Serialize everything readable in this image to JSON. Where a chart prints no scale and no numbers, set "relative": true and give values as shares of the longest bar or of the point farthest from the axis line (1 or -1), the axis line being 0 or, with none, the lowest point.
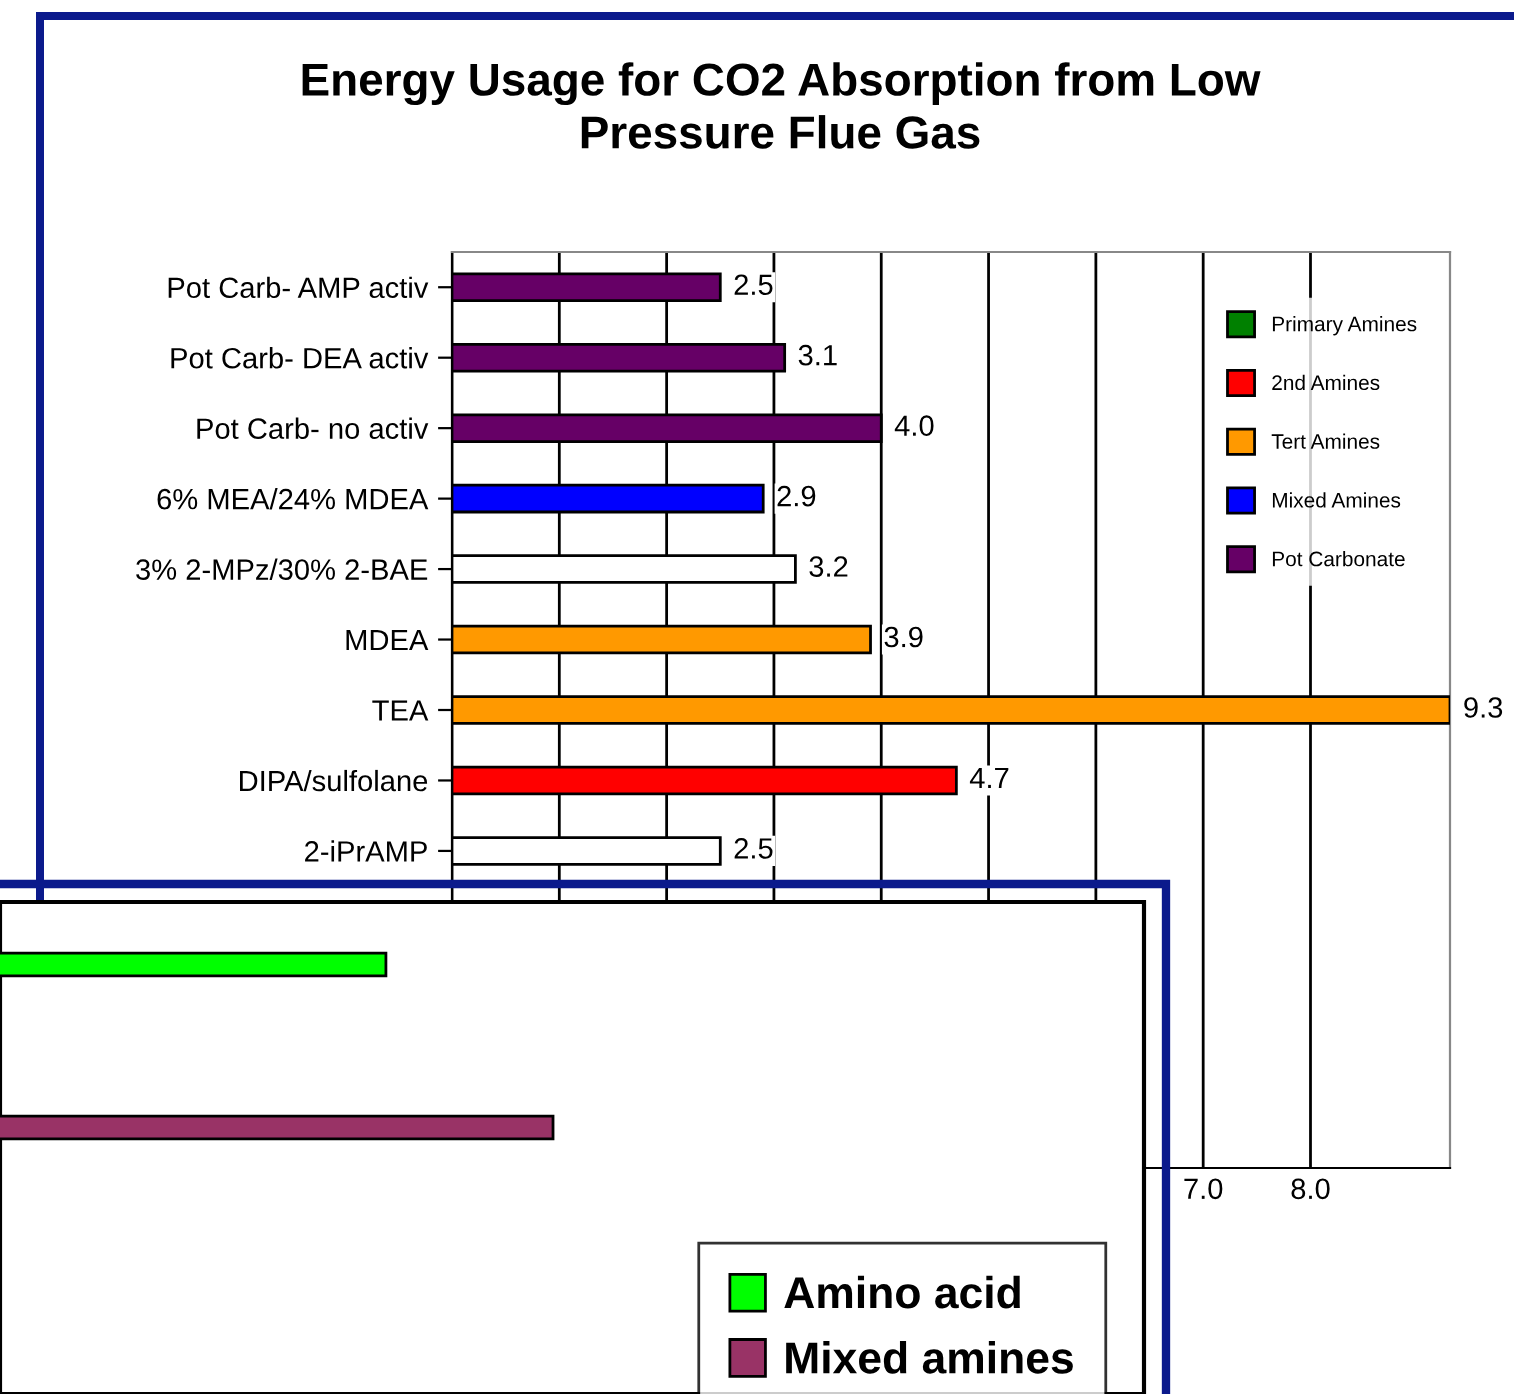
{
  "chart_data": [
    {
      "type": "bar",
      "orientation": "horizontal",
      "stacked": true,
      "title": "Energy Usage for CO2 Absorption from Low\nPressure Flue Gas",
      "categories": [
        "Pot Carb- AMP activ",
        "Pot Carb- DEA activ",
        "Pot Carb- no activ",
        "6% MEA/24% MDEA",
        "3% 2-MPz/30% 2-BAE",
        "MDEA",
        "TEA",
        "DIPA/sulfolane",
        "2-iPrAMP",
        null,
        null,
        null,
        null
      ],
      "series": [
        {
          "name": "Primary Amines",
          "color": "#008000",
          "values": [
            null,
            null,
            null,
            null,
            null,
            null,
            null,
            null,
            null,
            null,
            null,
            null,
            null
          ]
        },
        {
          "name": "2nd Amines",
          "color": "#ff0000",
          "values": [
            null,
            null,
            null,
            null,
            null,
            null,
            null,
            4.7,
            null,
            null,
            null,
            null,
            null
          ]
        },
        {
          "name": "Tert Amines",
          "color": "#ff9900",
          "values": [
            null,
            null,
            null,
            null,
            null,
            3.9,
            9.3,
            null,
            null,
            null,
            null,
            null,
            null
          ]
        },
        {
          "name": "Mixed Amines",
          "color": "#0000ff",
          "values": [
            null,
            null,
            null,
            2.9,
            null,
            null,
            null,
            null,
            null,
            null,
            null,
            null,
            null
          ]
        },
        {
          "name": "Pot Carbonate",
          "color": "#660066",
          "values": [
            2.5,
            3.1,
            4.0,
            null,
            null,
            null,
            null,
            null,
            null,
            null,
            null,
            null,
            null
          ]
        },
        {
          "color": "#ffffff",
          "values": [
            null,
            null,
            null,
            null,
            3.2,
            null,
            null,
            null,
            2.5,
            null,
            null,
            null,
            null
          ]
        }
      ],
      "xlim": [
        0,
        9.3
      ],
      "xticks": [
        {
          "value": 0,
          "label": null
        },
        {
          "value": 1,
          "label": null
        },
        {
          "value": 2,
          "label": null
        },
        {
          "value": 3,
          "label": null
        },
        {
          "value": 4,
          "label": null
        },
        {
          "value": 5,
          "label": null
        },
        {
          "value": 6,
          "label": null
        },
        {
          "value": 7,
          "label": "7.0"
        },
        {
          "value": 8,
          "label": "8.0"
        }
      ],
      "value_labels": [
        "2.5",
        "3.1",
        "4.0",
        "2.9",
        "3.2",
        "3.9",
        "9.3",
        "4.7",
        "2.5",
        null,
        null,
        null,
        null
      ],
      "grid": "x",
      "legend": "top right"
    },
    {
      "type": "bar",
      "orientation": "horizontal",
      "stacked": true,
      "relative": true,
      "categories": [
        null,
        null
      ],
      "series": [
        {
          "name": "Amino acid",
          "color": "#00ff00",
          "values": [
            0.7,
            null
          ]
        },
        {
          "name": "Mixed amines",
          "color": "#993366",
          "values": [
            null,
            1
          ]
        }
      ],
      "legend": "bottom right"
    }
  ]
}
